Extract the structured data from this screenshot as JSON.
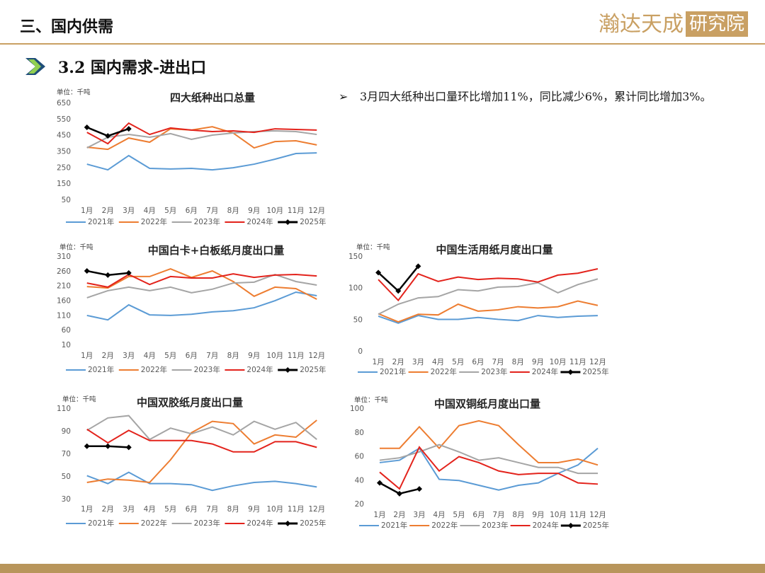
{
  "header": {
    "section": "三、国内供需",
    "logo": "瀚达天成",
    "logo_box": "研究院"
  },
  "subtitle": "3.2 国内需求-进出口",
  "bullet": "3月四大纸种出口量环比增加11%，同比减少6%，累计同比增加3%。",
  "chart_data": [
    {
      "type": "line",
      "title": "四大纸种出口总量",
      "unit": "单位：千吨",
      "grid": false,
      "categories": [
        "1月",
        "2月",
        "3月",
        "4月",
        "5月",
        "6月",
        "7月",
        "8月",
        "9月",
        "10月",
        "11月",
        "12月"
      ],
      "ylim": [
        50,
        650
      ],
      "yticks": [
        50,
        150,
        250,
        350,
        450,
        550,
        650
      ],
      "series": [
        {
          "name": "2021年",
          "color": "#5b9bd5",
          "values": [
            273,
            238,
            326,
            247,
            243,
            247,
            238,
            251,
            273,
            304,
            339,
            343
          ]
        },
        {
          "name": "2022年",
          "color": "#ed7d31",
          "values": [
            378,
            365,
            435,
            409,
            492,
            484,
            505,
            466,
            374,
            413,
            418,
            392
          ]
        },
        {
          "name": "2023年",
          "color": "#a5a5a5",
          "values": [
            374,
            440,
            457,
            440,
            462,
            427,
            453,
            466,
            475,
            479,
            475,
            457
          ]
        },
        {
          "name": "2024年",
          "color": "#e3231c",
          "values": [
            470,
            400,
            527,
            457,
            497,
            484,
            475,
            479,
            470,
            492,
            488,
            484
          ]
        },
        {
          "name": "2025年",
          "color": "#000000",
          "marker": "diamond",
          "values": [
            501,
            448,
            492,
            null,
            null,
            null,
            null,
            null,
            null,
            null,
            null,
            null
          ]
        }
      ]
    },
    {
      "type": "line",
      "title": "中国白卡+白板纸月度出口量",
      "unit": "单位：千吨",
      "grid": false,
      "categories": [
        "1月",
        "2月",
        "3月",
        "4月",
        "5月",
        "6月",
        "7月",
        "8月",
        "9月",
        "10月",
        "11月",
        "12月"
      ],
      "ylim": [
        10,
        310
      ],
      "yticks": [
        10,
        60,
        110,
        160,
        210,
        260,
        310
      ],
      "series": [
        {
          "name": "2021年",
          "color": "#5b9bd5",
          "values": [
            111,
            96,
            147,
            113,
            111,
            115,
            123,
            127,
            137,
            161,
            190,
            178
          ]
        },
        {
          "name": "2022年",
          "color": "#ed7d31",
          "values": [
            209,
            204,
            243,
            243,
            269,
            240,
            262,
            226,
            176,
            207,
            202,
            166
          ]
        },
        {
          "name": "2023年",
          "color": "#a5a5a5",
          "values": [
            171,
            195,
            207,
            195,
            207,
            188,
            200,
            221,
            224,
            250,
            226,
            214
          ]
        },
        {
          "name": "2024年",
          "color": "#e3231c",
          "values": [
            221,
            207,
            250,
            216,
            243,
            238,
            238,
            252,
            240,
            248,
            250,
            245
          ]
        },
        {
          "name": "2025年",
          "color": "#000000",
          "marker": "diamond",
          "values": [
            262,
            248,
            255,
            null,
            null,
            null,
            null,
            null,
            null,
            null,
            null,
            null
          ]
        }
      ]
    },
    {
      "type": "line",
      "title": "中国生活用纸月度出口量",
      "unit": "单位：千吨",
      "grid": false,
      "categories": [
        "1月",
        "2月",
        "3月",
        "4月",
        "5月",
        "6月",
        "7月",
        "8月",
        "9月",
        "10月",
        "11月",
        "12月"
      ],
      "ylim": [
        0,
        150
      ],
      "yticks": [
        0,
        50,
        100,
        150
      ],
      "series": [
        {
          "name": "2021年",
          "color": "#5b9bd5",
          "values": [
            56,
            45,
            57,
            51,
            51,
            54,
            51,
            49,
            57,
            54,
            56,
            57
          ]
        },
        {
          "name": "2022年",
          "color": "#ed7d31",
          "values": [
            60,
            47,
            59,
            58,
            75,
            64,
            66,
            71,
            69,
            71,
            80,
            73
          ]
        },
        {
          "name": "2023年",
          "color": "#a5a5a5",
          "values": [
            59,
            75,
            85,
            87,
            98,
            96,
            102,
            103,
            109,
            93,
            106,
            115
          ]
        },
        {
          "name": "2024年",
          "color": "#e3231c",
          "values": [
            114,
            81,
            123,
            111,
            118,
            114,
            116,
            115,
            110,
            121,
            124,
            131
          ]
        },
        {
          "name": "2025年",
          "color": "#000000",
          "marker": "diamond",
          "values": [
            125,
            96,
            135,
            null,
            null,
            null,
            null,
            null,
            null,
            null,
            null,
            null
          ]
        }
      ]
    },
    {
      "type": "line",
      "title": "中国双胶纸月度出口量",
      "unit": "单位：千吨",
      "grid": false,
      "categories": [
        "1月",
        "2月",
        "3月",
        "4月",
        "5月",
        "6月",
        "7月",
        "8月",
        "9月",
        "10月",
        "11月",
        "12月"
      ],
      "ylim": [
        30,
        110
      ],
      "yticks": [
        30,
        50,
        70,
        90,
        110
      ],
      "series": [
        {
          "name": "2021年",
          "color": "#5b9bd5",
          "values": [
            51,
            44,
            54,
            44,
            44,
            43,
            38,
            42,
            45,
            46,
            44,
            41
          ]
        },
        {
          "name": "2022年",
          "color": "#ed7d31",
          "values": [
            45,
            48,
            47,
            45,
            65,
            89,
            99,
            97,
            79,
            87,
            85,
            100
          ]
        },
        {
          "name": "2023年",
          "color": "#a5a5a5",
          "values": [
            91,
            102,
            104,
            83,
            93,
            88,
            94,
            87,
            99,
            92,
            98,
            83
          ]
        },
        {
          "name": "2024年",
          "color": "#e3231c",
          "values": [
            92,
            80,
            91,
            82,
            82,
            82,
            79,
            72,
            72,
            81,
            81,
            76
          ]
        },
        {
          "name": "2025年",
          "color": "#000000",
          "marker": "diamond",
          "values": [
            77,
            77,
            76,
            null,
            null,
            null,
            null,
            null,
            null,
            null,
            null,
            null
          ]
        }
      ]
    },
    {
      "type": "line",
      "title": "中国双铜纸月度出口量",
      "unit": "单位：千吨",
      "grid": false,
      "categories": [
        "1月",
        "2月",
        "3月",
        "4月",
        "5月",
        "6月",
        "7月",
        "8月",
        "9月",
        "10月",
        "11月",
        "12月"
      ],
      "ylim": [
        20,
        100
      ],
      "yticks": [
        20,
        40,
        60,
        80,
        100
      ],
      "series": [
        {
          "name": "2021年",
          "color": "#5b9bd5",
          "values": [
            55,
            57,
            67,
            41,
            40,
            36,
            32,
            36,
            38,
            46,
            53,
            67
          ]
        },
        {
          "name": "2022年",
          "color": "#ed7d31",
          "values": [
            67,
            67,
            85,
            67,
            86,
            90,
            86,
            70,
            55,
            55,
            58,
            53
          ]
        },
        {
          "name": "2023年",
          "color": "#a5a5a5",
          "values": [
            57,
            59,
            64,
            70,
            64,
            57,
            59,
            55,
            51,
            51,
            46,
            46
          ]
        },
        {
          "name": "2024年",
          "color": "#e3231c",
          "values": [
            47,
            33,
            68,
            48,
            60,
            55,
            48,
            45,
            46,
            46,
            38,
            37
          ]
        },
        {
          "name": "2025年",
          "color": "#000000",
          "marker": "diamond",
          "values": [
            38,
            29,
            33,
            null,
            null,
            null,
            null,
            null,
            null,
            null,
            null,
            null
          ]
        }
      ]
    }
  ]
}
